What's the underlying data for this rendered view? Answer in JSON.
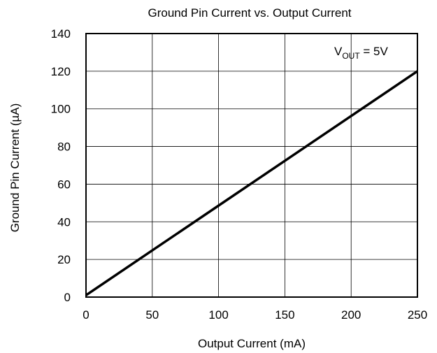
{
  "chart_data": {
    "type": "line",
    "title": "Ground Pin Current vs. Output Current",
    "xlabel": "Output Current (mA)",
    "ylabel": "Ground Pin Current (µA)",
    "xlim": [
      0,
      250
    ],
    "ylim": [
      0,
      140
    ],
    "x_ticks": [
      "0",
      "50",
      "100",
      "150",
      "200",
      "250"
    ],
    "y_ticks": [
      "0",
      "20",
      "40",
      "60",
      "80",
      "100",
      "120",
      "140"
    ],
    "grid": true,
    "annotation": {
      "prefix": "V",
      "subscript": "OUT",
      "suffix": " = 5V"
    },
    "series": [
      {
        "x": [
          0,
          50,
          100,
          150,
          200,
          250
        ],
        "y": [
          1,
          24.8,
          48.6,
          72.4,
          96.2,
          120
        ],
        "color": "#000000"
      }
    ]
  }
}
